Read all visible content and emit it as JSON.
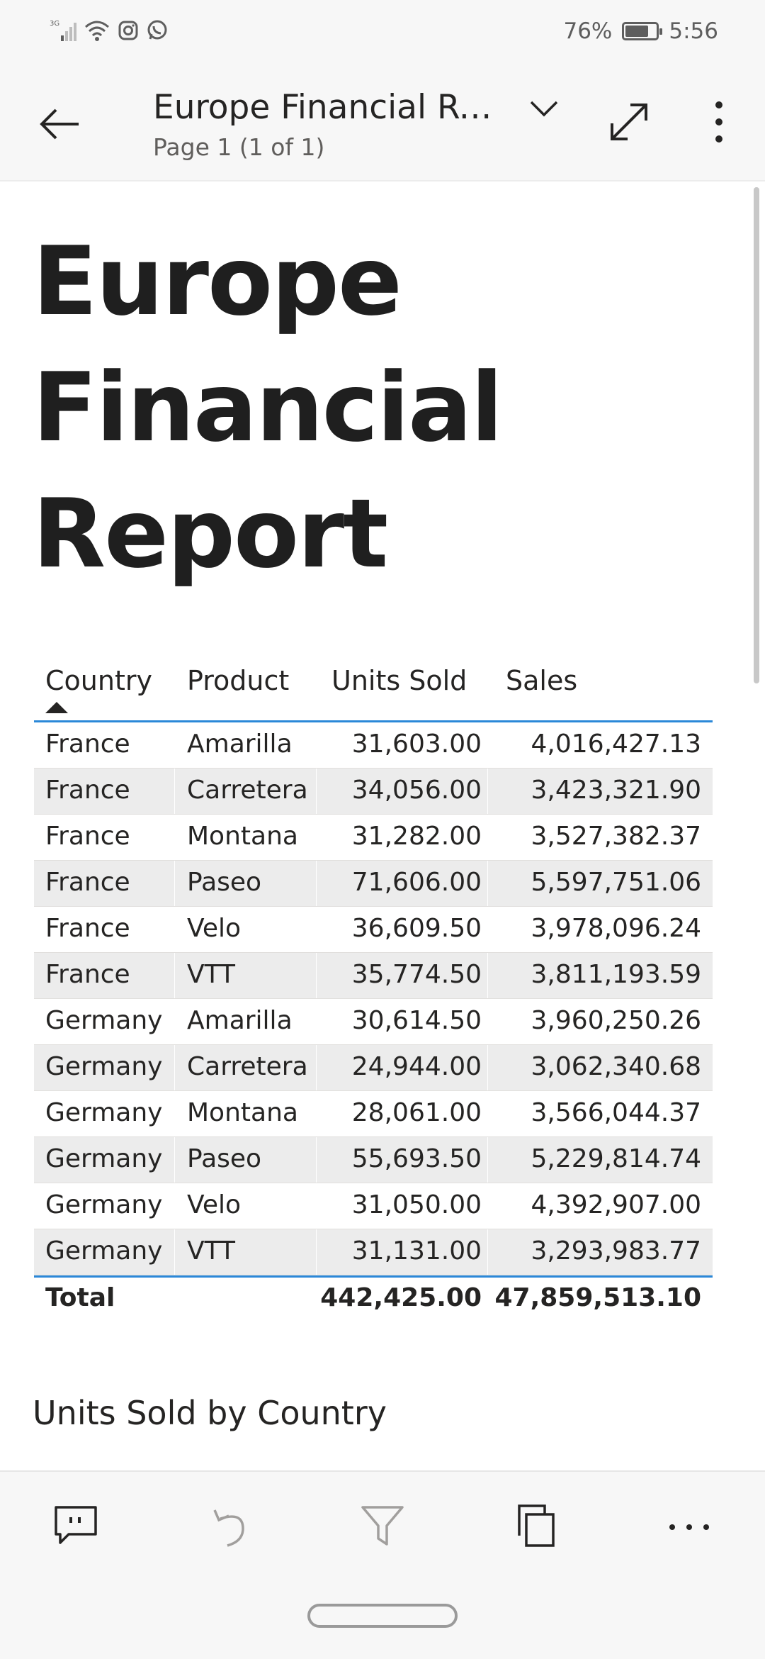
{
  "status_bar": {
    "network": "3G",
    "battery_percent_label": "76%",
    "battery_level": 0.76,
    "time": "5:56"
  },
  "header": {
    "back_icon": "arrow-left-icon",
    "title": "Europe Financial Rep...",
    "page_indicator": "Page 1 (1 of 1)",
    "dropdown_icon": "chevron-down-icon",
    "expand_icon": "expand-diagonal-icon",
    "more_icon": "more-vertical-icon"
  },
  "report": {
    "title_lines": [
      "Europe",
      "Financial",
      "Report"
    ],
    "section_title": "Units Sold by Country"
  },
  "table": {
    "columns": [
      "Country",
      "Product",
      "Units Sold",
      "Sales"
    ],
    "sorted_by": "Country",
    "rows": [
      {
        "country": "France",
        "product": "Amarilla",
        "units": "31,603.00",
        "sales": "4,016,427.13"
      },
      {
        "country": "France",
        "product": "Carretera",
        "units": "34,056.00",
        "sales": "3,423,321.90"
      },
      {
        "country": "France",
        "product": "Montana",
        "units": "31,282.00",
        "sales": "3,527,382.37"
      },
      {
        "country": "France",
        "product": "Paseo",
        "units": "71,606.00",
        "sales": "5,597,751.06"
      },
      {
        "country": "France",
        "product": "Velo",
        "units": "36,609.50",
        "sales": "3,978,096.24"
      },
      {
        "country": "France",
        "product": "VTT",
        "units": "35,774.50",
        "sales": "3,811,193.59"
      },
      {
        "country": "Germany",
        "product": "Amarilla",
        "units": "30,614.50",
        "sales": "3,960,250.26"
      },
      {
        "country": "Germany",
        "product": "Carretera",
        "units": "24,944.00",
        "sales": "3,062,340.68"
      },
      {
        "country": "Germany",
        "product": "Montana",
        "units": "28,061.00",
        "sales": "3,566,044.37"
      },
      {
        "country": "Germany",
        "product": "Paseo",
        "units": "55,693.50",
        "sales": "5,229,814.74"
      },
      {
        "country": "Germany",
        "product": "Velo",
        "units": "31,050.00",
        "sales": "4,392,907.00"
      },
      {
        "country": "Germany",
        "product": "VTT",
        "units": "31,131.00",
        "sales": "3,293,983.77"
      }
    ],
    "total": {
      "label": "Total",
      "units": "442,425.00",
      "sales": "47,859,513.10"
    }
  },
  "toolbar": {
    "items": [
      "comment-icon",
      "undo-icon",
      "filter-icon",
      "pages-icon",
      "more-horizontal-icon"
    ]
  },
  "colors": {
    "accent": "#2b88d8",
    "header_bg": "#f7f7f7",
    "alt_row": "#ececec",
    "text": "#252423"
  }
}
